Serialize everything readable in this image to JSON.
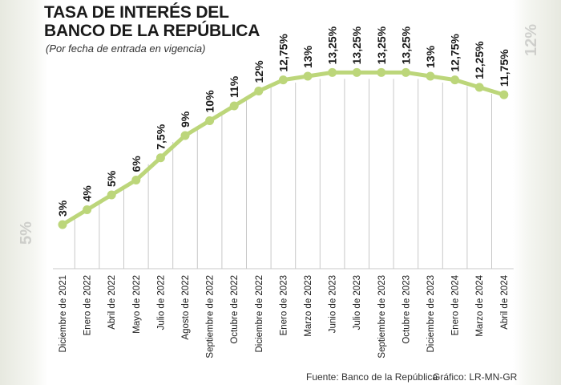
{
  "ghost_left": "5%",
  "ghost_right": "12%",
  "title_line1": "TASA DE INTERÉS DEL",
  "title_line2": "BANCO DE LA REPÚBLICA",
  "subtitle": "(Por fecha de entrada en vigencia)",
  "footer": {
    "source": "Fuente: Banco de la República",
    "credit": "Gráfico: LR-MN-GR"
  },
  "colors": {
    "line": "#bcd67a",
    "marker": "#bcd67a",
    "grid": "#c8c8c8",
    "text": "#1a1a1a"
  },
  "chart_data": {
    "type": "line",
    "title": "TASA DE INTERÉS DEL BANCO DE LA REPÚBLICA",
    "subtitle": "(Por fecha de entrada en vigencia)",
    "categories": [
      "Diciembre de 2021",
      "Enero de 2022",
      "Abril de 2022",
      "Mayo de 2022",
      "Julio de 2022",
      "Agosto de 2022",
      "Septiembre de 2022",
      "Octubre de 2022",
      "Diciembre de 2022",
      "Enero de 2023",
      "Marzo de 2023",
      "Junio de 2023",
      "Julio de 2023",
      "Septiembre de 2023",
      "Octubre de 2023",
      "Diciembre de 2023",
      "Enero de 2024",
      "Marzo de 2024",
      "Abril de 2024"
    ],
    "values": [
      3,
      4,
      5,
      6,
      7.5,
      9,
      10,
      11,
      12,
      12.75,
      13,
      13.25,
      13.25,
      13.25,
      13.25,
      13,
      12.75,
      12.25,
      11.75
    ],
    "labels": [
      "3%",
      "4%",
      "5%",
      "6%",
      "7,5%",
      "9%",
      "10%",
      "11%",
      "12%",
      "12,75%",
      "13%",
      "13,25%",
      "13,25%",
      "13,25%",
      "13,25%",
      "13%",
      "12,75%",
      "12,25%",
      "11,75%"
    ],
    "grid": true,
    "legend": "none"
  }
}
